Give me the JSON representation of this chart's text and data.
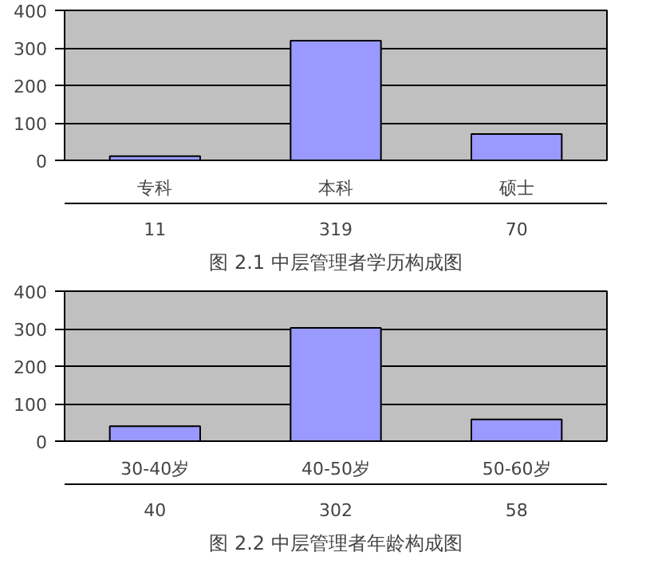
{
  "chart_data": [
    {
      "type": "bar",
      "title": "图 2.1 中层管理者学历构成图",
      "categories": [
        "专科",
        "本科",
        "硕士"
      ],
      "values": [
        11,
        319,
        70
      ],
      "color": "#9999ff",
      "ylim": [
        0,
        400
      ],
      "yticks": [
        0,
        100,
        200,
        300,
        400
      ],
      "grid": "y",
      "data_labels": true
    },
    {
      "type": "bar",
      "title": "图 2.2 中层管理者年龄构成图",
      "categories": [
        "30-40岁",
        "40-50岁",
        "50-60岁"
      ],
      "values": [
        40,
        302,
        58
      ],
      "color": "#9999ff",
      "ylim": [
        0,
        400
      ],
      "yticks": [
        0,
        100,
        200,
        300,
        400
      ],
      "grid": "y",
      "data_labels": true
    }
  ]
}
